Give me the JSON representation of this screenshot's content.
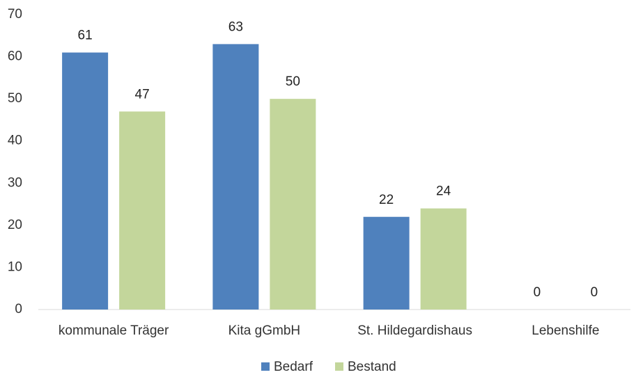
{
  "chart_data": {
    "type": "bar",
    "categories": [
      "kommunale Träger",
      "Kita gGmbH",
      "St. Hildegardishaus",
      "Lebenshilfe"
    ],
    "series": [
      {
        "name": "Bedarf",
        "color": "#4f81bd",
        "values": [
          61,
          63,
          22,
          0
        ]
      },
      {
        "name": "Bestand",
        "color": "#c3d69b",
        "values": [
          47,
          50,
          24,
          0
        ]
      }
    ],
    "ylim": [
      0,
      70
    ],
    "yticks": [
      0,
      10,
      20,
      30,
      40,
      50,
      60,
      70
    ],
    "grid": false,
    "legend": "bottom"
  }
}
